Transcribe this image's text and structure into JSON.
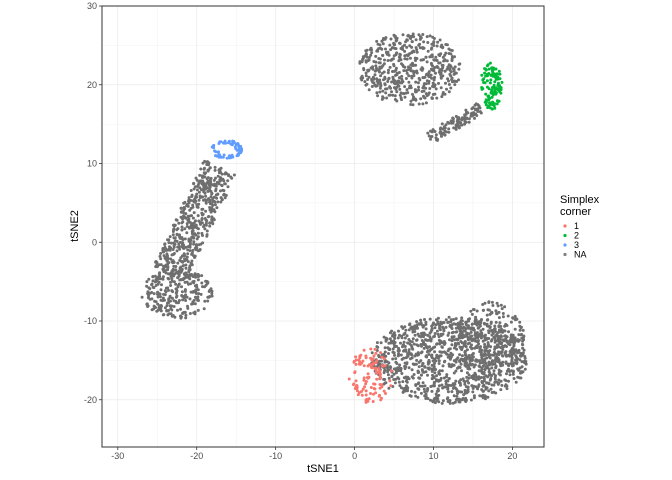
{
  "chart_data": {
    "type": "scatter",
    "title": "",
    "xlabel": "tSNE1",
    "ylabel": "tSNE2",
    "xlim": [
      -32,
      24
    ],
    "ylim": [
      -26,
      30
    ],
    "x_ticks": [
      -30,
      -20,
      -10,
      0,
      10,
      20
    ],
    "y_ticks": [
      -20,
      -10,
      0,
      10,
      20,
      30
    ],
    "x_tick_labels": [
      "-30",
      "-20",
      "-10",
      "0",
      "10",
      "20"
    ],
    "y_tick_labels": [
      "-20",
      "-10",
      "0",
      "10",
      "20",
      "30"
    ],
    "grid": true,
    "legend": {
      "position": "right",
      "title_lines": [
        "Simplex",
        "corner"
      ],
      "entries": [
        {
          "label": "1",
          "color": "#F8766D"
        },
        {
          "label": "2",
          "color": "#00BA38"
        },
        {
          "label": "3",
          "color": "#619CFF"
        },
        {
          "label": "NA",
          "color": "#7f7f7f"
        }
      ]
    },
    "series": [
      {
        "name": "1",
        "color": "#F8766D",
        "clusters": [
          {
            "shape": "ellipse",
            "cx": 2.0,
            "cy": -17.0,
            "rx": 2.8,
            "ry": 3.5,
            "n": 110
          }
        ]
      },
      {
        "name": "2",
        "color": "#00BA38",
        "clusters": [
          {
            "shape": "ellipse",
            "cx": 17.3,
            "cy": 19.8,
            "rx": 1.4,
            "ry": 3.0,
            "n": 110
          }
        ]
      },
      {
        "name": "3",
        "color": "#619CFF",
        "clusters": [
          {
            "shape": "ring",
            "cx": -16.2,
            "cy": 11.8,
            "rx": 1.9,
            "ry": 1.2,
            "n": 70
          }
        ]
      },
      {
        "name": "NA",
        "color": "#6e6e6e",
        "clusters": [
          {
            "shape": "ellipse",
            "cx": 7.0,
            "cy": 22.0,
            "rx": 6.5,
            "ry": 4.6,
            "n": 520
          },
          {
            "shape": "band",
            "from": [
              9.5,
              13.2
            ],
            "to": [
              16.0,
              17.0
            ],
            "width": 1.6,
            "n": 110
          },
          {
            "shape": "band",
            "from": [
              -17.0,
              9.5
            ],
            "to": [
              -23.5,
              -4.0
            ],
            "width": 4.5,
            "n": 520
          },
          {
            "shape": "ellipse",
            "cx": -22.5,
            "cy": -6.5,
            "rx": 4.5,
            "ry": 3.2,
            "n": 260
          },
          {
            "shape": "ellipse",
            "cx": 12.0,
            "cy": -15.0,
            "rx": 10.0,
            "ry": 5.5,
            "n": 1100
          },
          {
            "shape": "ellipse",
            "cx": 17.0,
            "cy": -12.0,
            "rx": 4.5,
            "ry": 4.5,
            "n": 260
          }
        ]
      }
    ]
  }
}
